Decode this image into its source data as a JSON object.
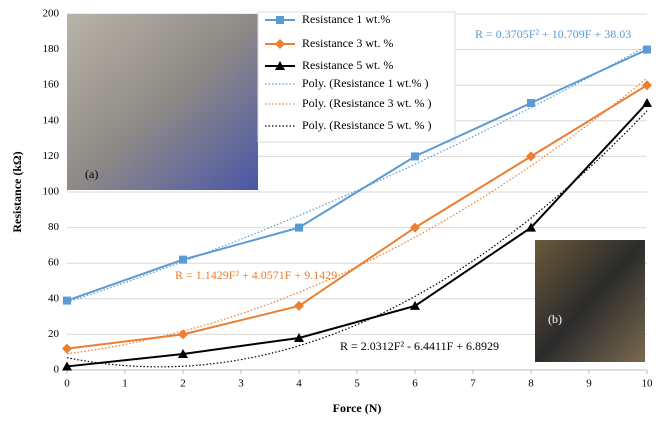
{
  "chart_data": {
    "type": "line",
    "x_label": "Force (N)",
    "y_label": "Resistance (kΩ)",
    "x": [
      0,
      2,
      4,
      6,
      8,
      10
    ],
    "series": [
      {
        "name": "Resistance 1 wt.%",
        "color": "#5b9bd5",
        "marker": "square",
        "values": [
          39,
          62,
          80,
          120,
          150,
          180
        ]
      },
      {
        "name": "Resistance 3 wt. %",
        "color": "#ed7d31",
        "marker": "diamond",
        "values": [
          12,
          20,
          36,
          80,
          120,
          160
        ]
      },
      {
        "name": "Resistance 5 wt. %",
        "color": "#000000",
        "marker": "triangle",
        "values": [
          2,
          9,
          18,
          36,
          80,
          150
        ]
      }
    ],
    "trendlines": [
      {
        "name": "Poly. (Resistance 1 wt.% )",
        "color": "#5b9bd5",
        "equation": "R = 0.3705F² + 10.709F + 38.03",
        "coefficients": [
          0.3705,
          10.709,
          38.03
        ]
      },
      {
        "name": "Poly. (Resistance 3 wt. % )",
        "color": "#ed7d31",
        "equation": "R = 1.1429F² + 4.0571F + 9.1429",
        "coefficients": [
          1.1429,
          4.0571,
          9.1429
        ]
      },
      {
        "name": "Poly. (Resistance 5 wt. % )",
        "color": "#000000",
        "equation": "R = 2.0312F² - 6.4411F + 6.8929",
        "coefficients": [
          2.0312,
          -6.4411,
          6.8929
        ]
      }
    ],
    "xlim": [
      0,
      10
    ],
    "xticks": [
      0,
      1,
      2,
      3,
      4,
      5,
      6,
      7,
      8,
      9,
      10
    ],
    "ylim": [
      0,
      200
    ],
    "yticks": [
      0,
      20,
      40,
      60,
      80,
      100,
      120,
      140,
      160,
      180,
      200
    ],
    "grid": true,
    "annotations": [
      "(a)",
      "(b)"
    ]
  }
}
